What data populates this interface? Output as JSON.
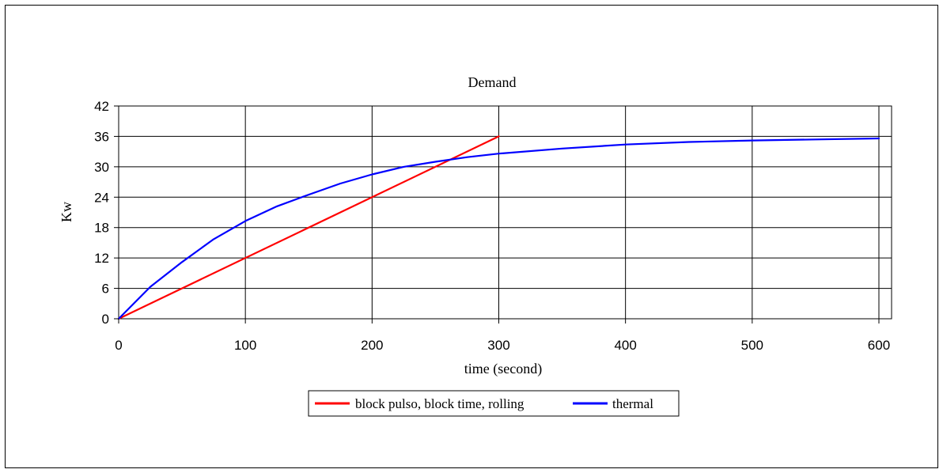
{
  "chart_data": {
    "type": "line",
    "title": "Demand",
    "xlabel": "time (second)",
    "ylabel": "Kw",
    "xlim": [
      0,
      610
    ],
    "ylim": [
      0,
      42
    ],
    "x_ticks": [
      0,
      100,
      200,
      300,
      400,
      500,
      600
    ],
    "y_ticks": [
      0,
      6,
      12,
      18,
      24,
      30,
      36,
      42
    ],
    "x_tick_labels": [
      "0",
      "100",
      "200",
      "300",
      "400",
      "500",
      "600"
    ],
    "y_tick_labels": [
      "0",
      "6",
      "12",
      "18",
      "24",
      "30",
      "36",
      "42"
    ],
    "grid": true,
    "legend_position": "bottom-center",
    "series": [
      {
        "name": "block pulso, block time, rolling",
        "color": "#ff0000",
        "x": [
          0,
          300
        ],
        "y": [
          0,
          36
        ]
      },
      {
        "name": "thermal",
        "color": "#0000ff",
        "x": [
          0,
          25,
          50,
          75,
          100,
          125,
          150,
          175,
          200,
          225,
          250,
          275,
          300,
          350,
          400,
          450,
          500,
          550,
          600
        ],
        "y": [
          0,
          6.3,
          11.2,
          15.7,
          19.3,
          22.2,
          24.5,
          26.7,
          28.5,
          30.0,
          31.0,
          31.9,
          32.6,
          33.6,
          34.4,
          34.9,
          35.2,
          35.4,
          35.6
        ]
      }
    ]
  }
}
